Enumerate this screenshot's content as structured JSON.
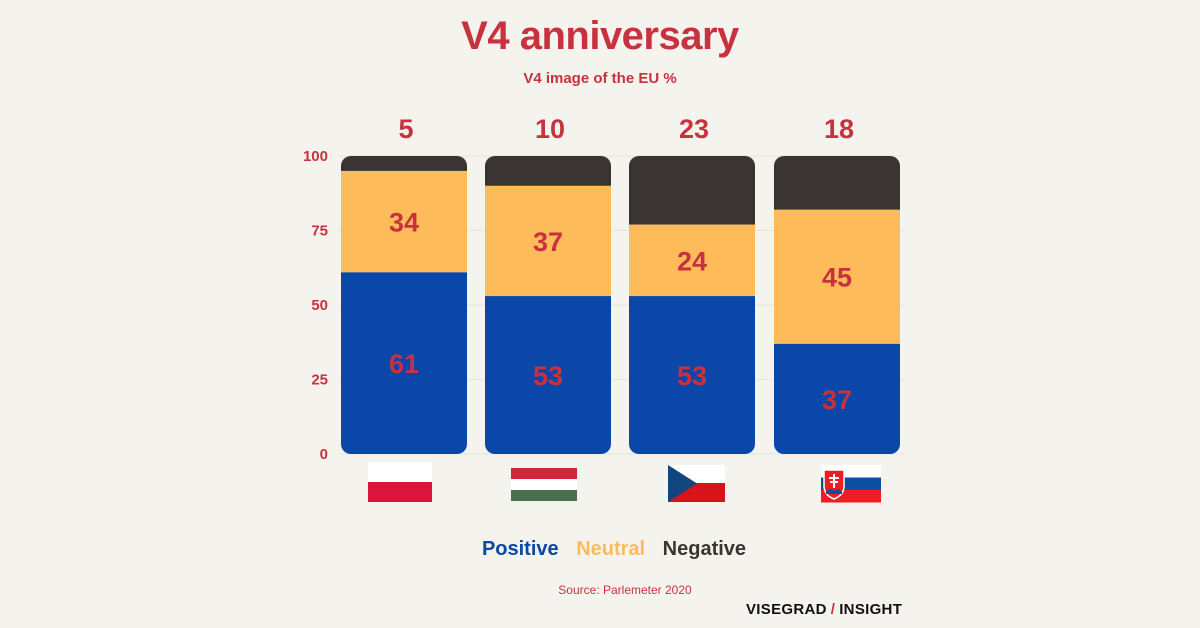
{
  "chart_data": {
    "type": "bar",
    "stacked": true,
    "title": "V4 anniversary",
    "subtitle": "V4 image of the EU %",
    "categories": [
      "Poland",
      "Hungary",
      "Czech Republic",
      "Slovakia"
    ],
    "series": [
      {
        "name": "Positive",
        "color": "#0a47a8",
        "values": [
          61,
          53,
          53,
          37
        ]
      },
      {
        "name": "Neutral",
        "color": "#fdbb5a",
        "values": [
          34,
          37,
          24,
          45
        ]
      },
      {
        "name": "Negative",
        "color": "#3a3533",
        "values": [
          5,
          10,
          23,
          18
        ]
      }
    ],
    "ylim": [
      0,
      100
    ],
    "yticks": [
      0,
      25,
      50,
      75,
      100
    ],
    "grid": true,
    "legend_position": "bottom",
    "label_color": "#c8323f"
  },
  "source": "Source: Parlemeter 2020",
  "brand": {
    "left": "VISEGRAD",
    "sep": "/",
    "right": "INSIGHT"
  }
}
